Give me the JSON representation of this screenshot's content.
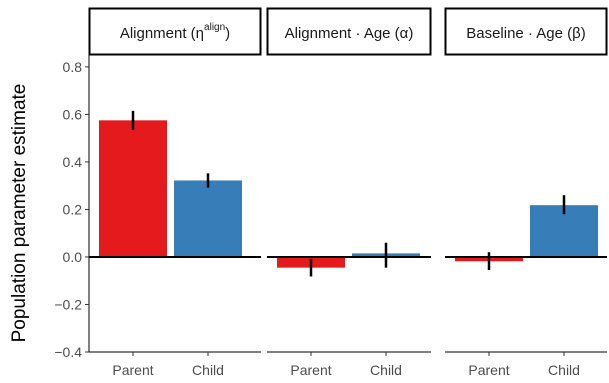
{
  "chart_data": {
    "type": "bar",
    "ylabel": "Population parameter estimate",
    "ylim": [
      -0.4,
      0.85
    ],
    "yticks": [
      -0.4,
      -0.2,
      0.0,
      0.2,
      0.4,
      0.6,
      0.8
    ],
    "ytick_labels": [
      "−0.4",
      "−0.2",
      "0.0",
      "0.2",
      "0.4",
      "0.6",
      "0.8"
    ],
    "categories": [
      "Parent",
      "Child"
    ],
    "colors": {
      "Parent": "#e41a1c",
      "Child": "#377eb8"
    },
    "reference_line": 0,
    "grid": false,
    "panels": [
      {
        "title": "Alignment (η",
        "title_sup": "align",
        "title_end": ")",
        "values": [
          0.575,
          0.322
        ],
        "error": [
          [
            0.535,
            0.615
          ],
          [
            0.292,
            0.352
          ]
        ]
      },
      {
        "title": "Alignment · Age (α)",
        "values": [
          -0.045,
          0.015
        ],
        "error": [
          [
            -0.082,
            -0.008
          ],
          [
            -0.045,
            0.06
          ]
        ]
      },
      {
        "title": "Baseline · Age (β)",
        "values": [
          -0.018,
          0.218
        ],
        "error": [
          [
            -0.055,
            0.02
          ],
          [
            0.18,
            0.26
          ]
        ]
      }
    ]
  }
}
